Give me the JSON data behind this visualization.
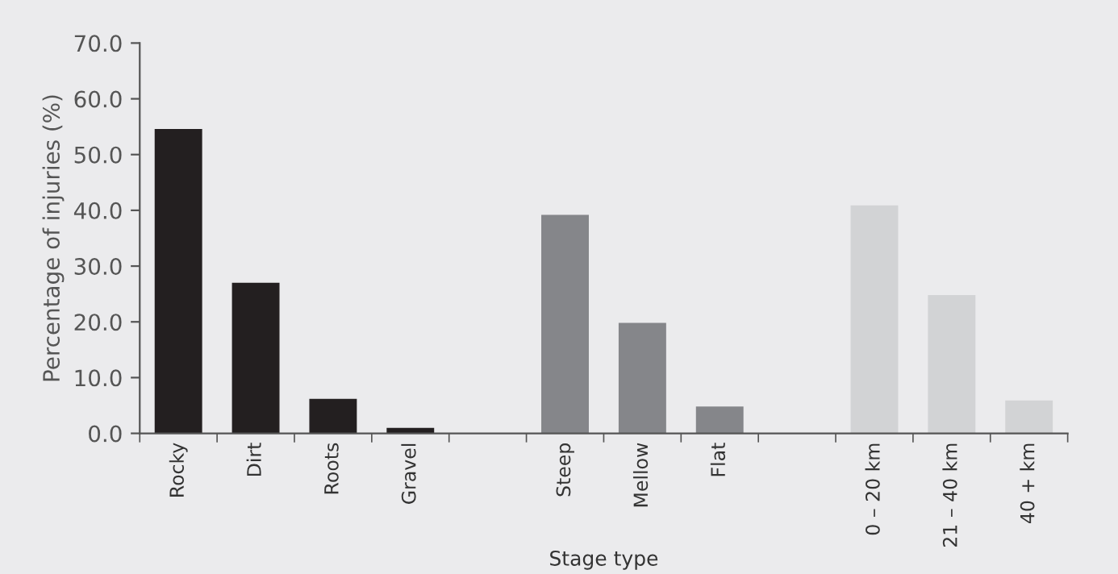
{
  "chart_data": {
    "type": "bar",
    "xlabel": "Stage type",
    "ylabel": "Percentage of injuries (%)",
    "categories": [
      "Rocky",
      "Dirt",
      "Roots",
      "Gravel",
      null,
      "Steep",
      "Mellow",
      "Flat",
      null,
      "0 – 20 km",
      "21 – 40 km",
      "40 + km"
    ],
    "values": [
      54.5,
      26.9,
      6.1,
      0.9,
      null,
      39.1,
      19.7,
      4.7,
      null,
      40.8,
      24.7,
      5.8
    ],
    "colors": [
      "#231f20",
      "#231f20",
      "#231f20",
      "#231f20",
      "#231f20",
      "#85868a",
      "#85868a",
      "#85868a",
      "#85868a",
      "#d2d3d5",
      "#d2d3d5",
      "#d2d3d5"
    ],
    "ylim": [
      0,
      70
    ],
    "yticks": [
      {
        "value": 0,
        "label": "0.0"
      },
      {
        "value": 10,
        "label": "10.0"
      },
      {
        "value": 20,
        "label": "20.0"
      },
      {
        "value": 30,
        "label": "30.0"
      },
      {
        "value": 40,
        "label": "40.0"
      },
      {
        "value": 50,
        "label": "50.0"
      },
      {
        "value": 60,
        "label": "60.0"
      },
      {
        "value": 70,
        "label": "70.0"
      }
    ],
    "grid": false
  }
}
